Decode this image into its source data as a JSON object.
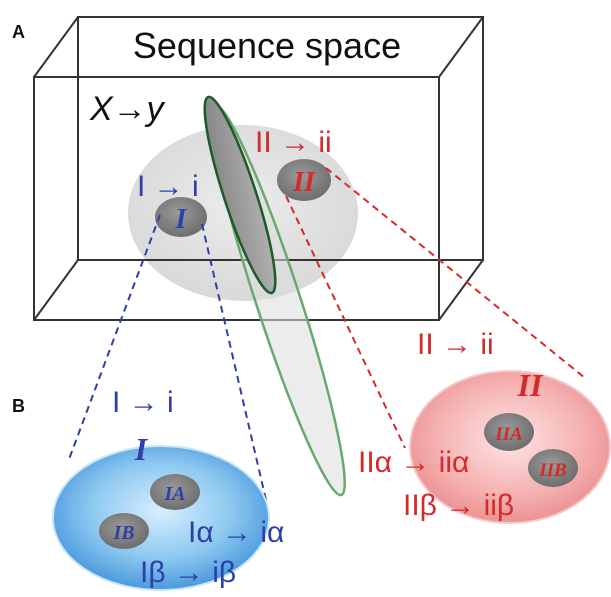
{
  "panel_a": {
    "letter": "A",
    "box_title": "Sequence space",
    "mapping_label": "X→y"
  },
  "panel_b": {
    "letter": "B"
  },
  "clusters": {
    "I": {
      "mapping": "I → i",
      "label": "I"
    },
    "II": {
      "mapping": "II → ii",
      "label": "II"
    }
  },
  "blue_zoom": {
    "mapping": "I → i",
    "title": "I",
    "sub_a": "IA",
    "sub_b": "IB",
    "mapping_alpha": "Iα → iα",
    "mapping_beta": "Iβ → iβ"
  },
  "red_zoom": {
    "mapping": "II → ii",
    "title": "II",
    "sub_a": "IIA",
    "sub_b": "IIB",
    "mapping_alpha": "IIα → iiα",
    "mapping_beta": "IIβ → iiβ"
  },
  "colors": {
    "blue_text": "#2f3fa8",
    "red_text": "#d42a2a",
    "box_stroke": "#333333",
    "gray_ellipse": "#e2e2e2",
    "green_outline": "#4e9a52",
    "dark_green": "#1f5a2a"
  }
}
